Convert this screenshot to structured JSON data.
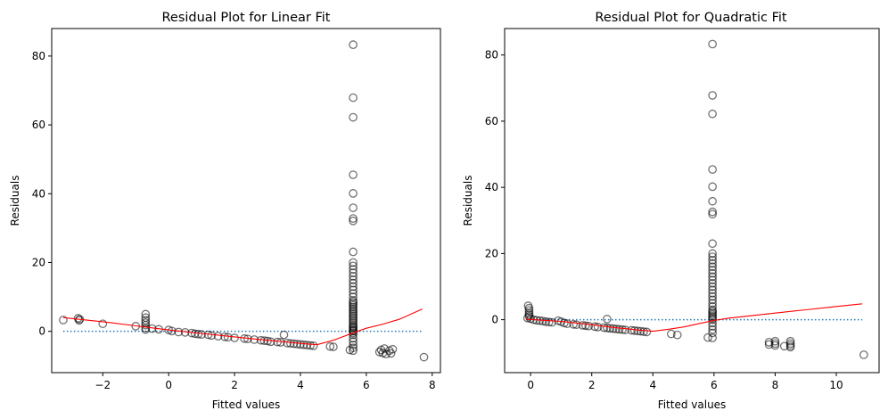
{
  "chart_data": [
    {
      "type": "scatter",
      "title": "Residual Plot for Linear Fit",
      "xlabel": "Fitted values",
      "ylabel": "Residuals",
      "xlim": [
        -3.55,
        8.25
      ],
      "ylim": [
        -12,
        88
      ],
      "xticks": [
        -2,
        0,
        2,
        4,
        6,
        8
      ],
      "yticks": [
        0,
        20,
        40,
        60,
        80
      ],
      "grid": false,
      "reference_line": {
        "y": 0,
        "x_range": [
          -3.2,
          7.7
        ],
        "style": "dotted",
        "color": "#1f77b4"
      },
      "lowess": {
        "color": "#ff0000",
        "x": [
          -3.2,
          -2.8,
          -2.0,
          -1.0,
          -0.5,
          0.0,
          0.5,
          1.0,
          1.5,
          2.0,
          2.5,
          3.0,
          3.5,
          4.0,
          4.5,
          5.0,
          5.5,
          5.7,
          6.0,
          6.5,
          7.0,
          7.7
        ],
        "y": [
          4.0,
          3.6,
          2.8,
          1.6,
          1.0,
          0.4,
          -0.1,
          -0.6,
          -1.1,
          -1.6,
          -2.1,
          -2.6,
          -3.0,
          -3.5,
          -3.9,
          -2.6,
          -0.8,
          -0.1,
          0.9,
          2.1,
          3.5,
          6.5
        ]
      },
      "points": {
        "marker": "hollow-circle",
        "x": [
          -3.2,
          -2.75,
          -2.72,
          -2.7,
          -2.0,
          -1.0,
          -0.7,
          -0.7,
          -0.7,
          -0.7,
          -0.7,
          -0.7,
          -0.7,
          -0.5,
          -0.3,
          0.0,
          0.1,
          0.3,
          0.5,
          0.7,
          0.8,
          0.9,
          1.0,
          1.2,
          1.3,
          1.5,
          1.7,
          1.8,
          2.0,
          2.3,
          2.4,
          2.6,
          2.8,
          2.9,
          3.0,
          3.1,
          3.3,
          3.4,
          3.5,
          3.6,
          3.7,
          3.8,
          3.9,
          4.0,
          4.1,
          4.2,
          4.3,
          4.4,
          4.9,
          5.0,
          5.5,
          5.6,
          5.6,
          5.6,
          5.6,
          5.6,
          5.6,
          5.6,
          5.6,
          5.6,
          5.6,
          5.6,
          5.6,
          5.6,
          5.6,
          5.6,
          5.6,
          5.6,
          5.6,
          5.6,
          5.6,
          5.6,
          5.6,
          5.6,
          5.6,
          5.6,
          5.6,
          5.6,
          5.6,
          5.6,
          5.6,
          5.6,
          5.6,
          5.6,
          5.6,
          5.6,
          5.6,
          5.6,
          5.6,
          5.6,
          5.6,
          5.6,
          5.6,
          5.6,
          5.6,
          5.6,
          5.6,
          5.6,
          5.6,
          6.4,
          6.45,
          6.5,
          6.55,
          6.6,
          6.7,
          6.75,
          6.8,
          7.75
        ],
        "y": [
          3.3,
          3.8,
          3.2,
          3.5,
          2.2,
          1.5,
          5.0,
          4.0,
          3.2,
          2.5,
          1.8,
          1.0,
          0.5,
          0.8,
          0.6,
          0.4,
          0.1,
          -0.2,
          -0.3,
          -0.5,
          -0.7,
          -0.8,
          -0.9,
          -1.0,
          -1.2,
          -1.4,
          -1.6,
          -1.7,
          -1.9,
          -2.1,
          -2.2,
          -2.4,
          -2.6,
          -2.7,
          -2.8,
          -3.0,
          -3.1,
          -3.2,
          -1.0,
          -3.4,
          -3.5,
          -3.6,
          -3.7,
          -3.8,
          -3.9,
          -4.0,
          -4.1,
          -4.2,
          -4.4,
          -4.5,
          -5.4,
          -5.6,
          83.3,
          67.9,
          62.2,
          45.5,
          40.1,
          35.9,
          32.8,
          32.1,
          23.1,
          20.0,
          19.0,
          18.0,
          17.0,
          16.0,
          15.0,
          14.0,
          13.0,
          12.0,
          11.0,
          10.0,
          9.0,
          8.0,
          7.0,
          6.0,
          5.5,
          5.0,
          4.5,
          4.0,
          3.5,
          3.0,
          2.5,
          2.0,
          1.5,
          1.0,
          0.5,
          0.0,
          -0.5,
          -1.0,
          -2.0,
          -3.0,
          -4.0,
          -4.8,
          8.5,
          7.5,
          6.5,
          1.2,
          0.2,
          -6.0,
          -5.4,
          -6.3,
          -5.0,
          -6.6,
          -5.6,
          -6.4,
          -5.2,
          -7.5
        ]
      }
    },
    {
      "type": "scatter",
      "title": "Residual Plot for Quadratic Fit",
      "xlabel": "Fitted values",
      "ylabel": "Residuals",
      "xlim": [
        -0.85,
        11.4
      ],
      "ylim": [
        -16,
        88
      ],
      "xticks": [
        0,
        2,
        4,
        6,
        8,
        10
      ],
      "yticks": [
        0,
        20,
        40,
        60,
        80
      ],
      "grid": false,
      "reference_line": {
        "y": 0,
        "x_range": [
          -0.15,
          10.85
        ],
        "style": "dotted",
        "color": "#1f77b4"
      },
      "lowess": {
        "color": "#ff0000",
        "x": [
          -0.15,
          0.5,
          1.0,
          1.5,
          2.0,
          2.5,
          3.0,
          3.5,
          4.0,
          4.5,
          5.0,
          5.5,
          6.0,
          6.5,
          7.0,
          8.0,
          9.0,
          10.0,
          10.85
        ],
        "y": [
          0.2,
          -0.2,
          -0.5,
          -1.0,
          -1.5,
          -2.1,
          -2.6,
          -3.1,
          -3.5,
          -2.9,
          -2.2,
          -1.2,
          -0.2,
          0.5,
          1.0,
          2.0,
          3.0,
          4.0,
          4.8
        ]
      },
      "points": {
        "marker": "hollow-circle",
        "x": [
          -0.1,
          -0.08,
          -0.05,
          -0.05,
          -0.05,
          -0.05,
          -0.05,
          0.0,
          0.1,
          0.2,
          0.3,
          0.4,
          0.5,
          0.6,
          0.7,
          0.9,
          1.0,
          1.1,
          1.2,
          1.4,
          1.5,
          1.7,
          1.8,
          1.9,
          2.1,
          2.2,
          2.4,
          2.5,
          2.5,
          2.6,
          2.7,
          2.8,
          2.9,
          3.0,
          3.1,
          3.3,
          3.4,
          3.5,
          3.6,
          3.7,
          3.8,
          4.6,
          4.8,
          5.8,
          5.95,
          5.95,
          5.95,
          5.95,
          5.95,
          5.95,
          5.95,
          5.95,
          5.95,
          5.95,
          5.95,
          5.95,
          5.95,
          5.95,
          5.95,
          5.95,
          5.95,
          5.95,
          5.95,
          5.95,
          5.95,
          5.95,
          5.95,
          5.95,
          5.95,
          5.95,
          5.95,
          5.95,
          5.95,
          5.95,
          5.95,
          5.95,
          5.95,
          5.95,
          5.95,
          5.95,
          5.95,
          5.95,
          7.8,
          7.8,
          8.0,
          8.0,
          8.0,
          8.3,
          8.5,
          8.5,
          8.5,
          8.5,
          10.9
        ],
        "y": [
          0.5,
          4.2,
          3.5,
          2.8,
          2.0,
          1.5,
          1.0,
          0.3,
          0.0,
          -0.2,
          -0.3,
          -0.4,
          -0.6,
          -0.7,
          -0.8,
          -0.3,
          -0.6,
          -1.0,
          -1.2,
          -1.4,
          -1.5,
          -1.7,
          -1.8,
          -1.9,
          -2.1,
          -2.2,
          -2.4,
          0.2,
          -2.5,
          -2.6,
          -2.7,
          -2.8,
          -2.9,
          -3.0,
          -3.1,
          -3.2,
          -3.3,
          -3.4,
          -3.5,
          -3.6,
          -3.7,
          -4.3,
          -4.6,
          -5.4,
          83.3,
          67.8,
          62.2,
          45.4,
          40.2,
          35.8,
          32.6,
          31.9,
          23.0,
          20.0,
          19.0,
          18.0,
          17.0,
          16.0,
          15.0,
          14.0,
          13.0,
          12.0,
          11.0,
          10.0,
          9.0,
          8.0,
          7.0,
          6.0,
          5.0,
          4.0,
          3.0,
          2.5,
          2.0,
          1.5,
          1.0,
          0.5,
          0.0,
          -1.0,
          -2.0,
          -3.0,
          -4.0,
          -5.5,
          -6.8,
          -7.5,
          -6.5,
          -7.2,
          -7.8,
          -8.0,
          -6.5,
          -7.2,
          -7.8,
          -8.3,
          -10.6
        ]
      }
    }
  ]
}
